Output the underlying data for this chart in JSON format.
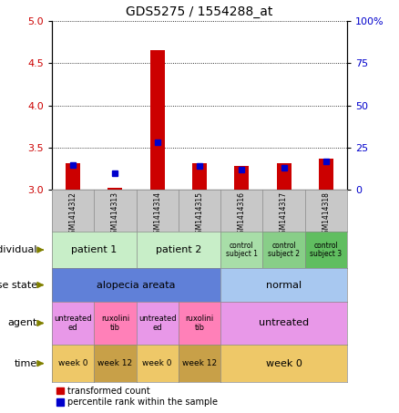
{
  "title": "GDS5275 / 1554288_at",
  "samples": [
    "GSM1414312",
    "GSM1414313",
    "GSM1414314",
    "GSM1414315",
    "GSM1414316",
    "GSM1414317",
    "GSM1414318"
  ],
  "red_values": [
    3.32,
    3.03,
    4.65,
    3.32,
    3.28,
    3.32,
    3.37
  ],
  "blue_values": [
    15,
    10,
    28,
    14,
    12,
    13,
    17
  ],
  "ylim_left": [
    3.0,
    5.0
  ],
  "ylim_right": [
    0,
    100
  ],
  "yticks_left": [
    3.0,
    3.5,
    4.0,
    4.5,
    5.0
  ],
  "yticks_right": [
    0,
    25,
    50,
    75,
    100
  ],
  "ytick_labels_right": [
    "0",
    "25",
    "50",
    "75",
    "100%"
  ],
  "red_color": "#cc0000",
  "blue_color": "#0000cc",
  "left_tick_color": "#cc0000",
  "right_tick_color": "#0000cc",
  "individual_data": [
    {
      "label": "patient 1",
      "start": 0,
      "end": 1,
      "color": "#c8eec8",
      "fontsize": 8
    },
    {
      "label": "patient 2",
      "start": 2,
      "end": 3,
      "color": "#c8eec8",
      "fontsize": 8
    },
    {
      "label": "control\nsubject 1",
      "start": 4,
      "end": 4,
      "color": "#a8dea8",
      "fontsize": 5.5
    },
    {
      "label": "control\nsubject 2",
      "start": 5,
      "end": 5,
      "color": "#88ce88",
      "fontsize": 5.5
    },
    {
      "label": "control\nsubject 3",
      "start": 6,
      "end": 6,
      "color": "#60be60",
      "fontsize": 5.5
    }
  ],
  "disease_data": [
    {
      "label": "alopecia areata",
      "start": 0,
      "end": 3,
      "color": "#6080d8",
      "fontsize": 8
    },
    {
      "label": "normal",
      "start": 4,
      "end": 6,
      "color": "#a8c8f0",
      "fontsize": 8
    }
  ],
  "agent_data": [
    {
      "label": "untreated\ned",
      "start": 0,
      "end": 0,
      "color": "#e898e8",
      "fontsize": 6
    },
    {
      "label": "ruxolini\ntib",
      "start": 1,
      "end": 1,
      "color": "#ff80b8",
      "fontsize": 6
    },
    {
      "label": "untreated\ned",
      "start": 2,
      "end": 2,
      "color": "#e898e8",
      "fontsize": 6
    },
    {
      "label": "ruxolini\ntib",
      "start": 3,
      "end": 3,
      "color": "#ff80b8",
      "fontsize": 6
    },
    {
      "label": "untreated",
      "start": 4,
      "end": 6,
      "color": "#e898e8",
      "fontsize": 8
    }
  ],
  "time_data": [
    {
      "label": "week 0",
      "start": 0,
      "end": 0,
      "color": "#eec868",
      "fontsize": 6.5
    },
    {
      "label": "week 12",
      "start": 1,
      "end": 1,
      "color": "#c8a048",
      "fontsize": 6.5
    },
    {
      "label": "week 0",
      "start": 2,
      "end": 2,
      "color": "#eec868",
      "fontsize": 6.5
    },
    {
      "label": "week 12",
      "start": 3,
      "end": 3,
      "color": "#c8a048",
      "fontsize": 6.5
    },
    {
      "label": "week 0",
      "start": 4,
      "end": 6,
      "color": "#eec868",
      "fontsize": 8
    }
  ],
  "row_labels": [
    "individual",
    "disease state",
    "agent",
    "time"
  ],
  "legend_items": [
    {
      "label": "transformed count",
      "color": "#cc0000"
    },
    {
      "label": "percentile rank within the sample",
      "color": "#0000cc"
    }
  ],
  "sample_col_color": "#c8c8c8"
}
